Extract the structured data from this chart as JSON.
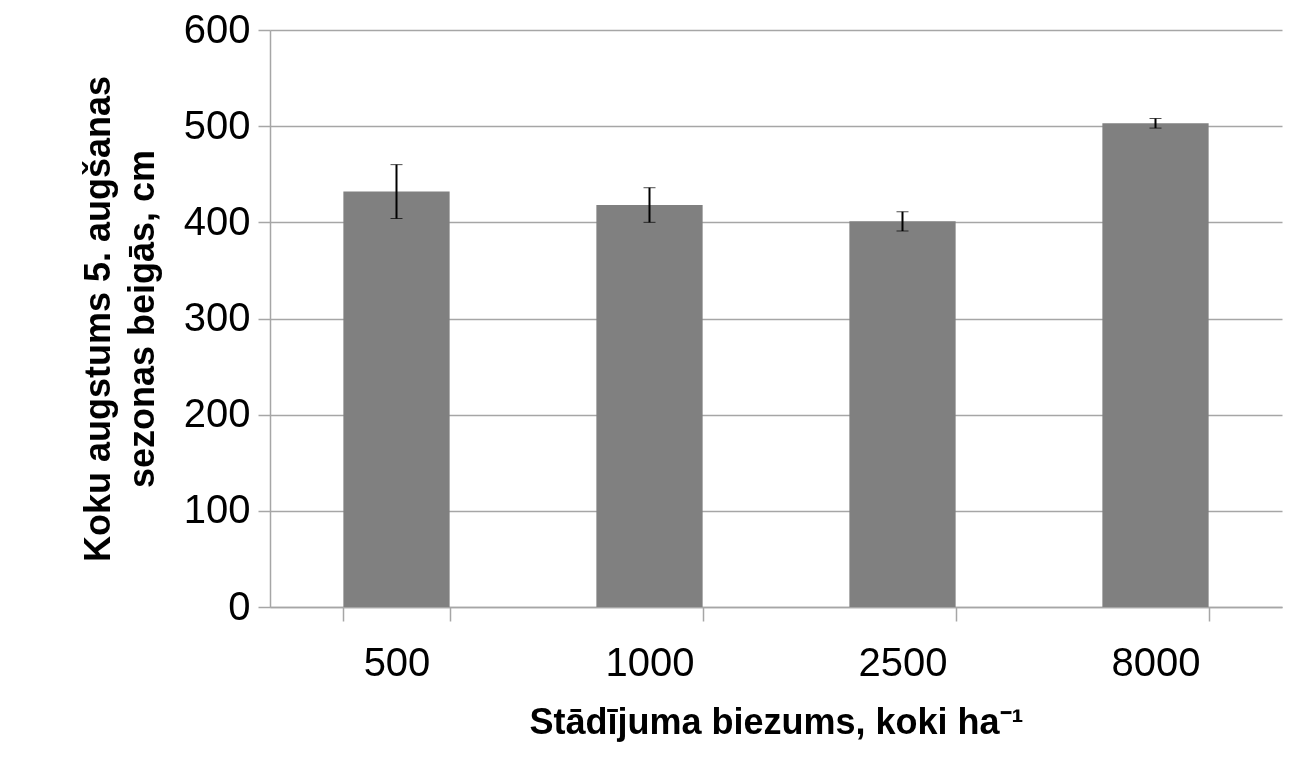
{
  "chart_data": {
    "type": "bar",
    "xlabel": "Stādījuma biezums, koki ha⁻¹",
    "ylabel": "Koku augstums 5. augšanas sezonas beigās, cm",
    "categories": [
      "500",
      "1000",
      "2500",
      "8000"
    ],
    "values": [
      432,
      418,
      401,
      503
    ],
    "errors": [
      28,
      18,
      10,
      5
    ],
    "color": "#808080",
    "ylim": [
      0,
      600
    ],
    "yticks": [
      0,
      100,
      200,
      300,
      400,
      500,
      600
    ],
    "grid": "y"
  }
}
